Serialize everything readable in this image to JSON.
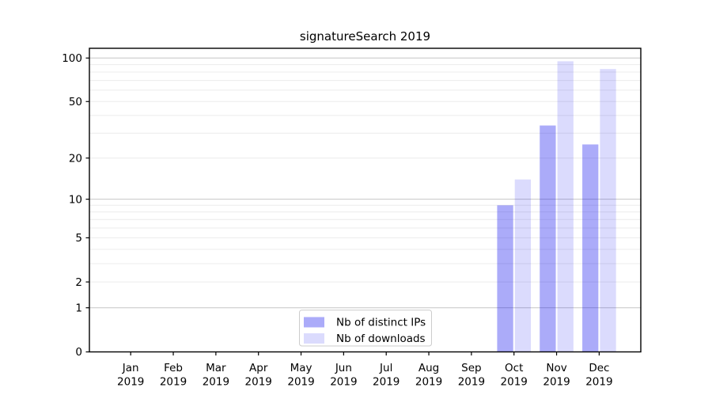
{
  "figure": {
    "background": "#ffffff",
    "axis_color": "#000000",
    "grid_minor_color": "#ececec",
    "grid_major_color": "#c6c6c6",
    "legend_border_color": "#cccccc"
  },
  "chart_data": {
    "type": "bar",
    "title": "signatureSearch 2019",
    "categories": [
      "Jan",
      "Feb",
      "Mar",
      "Apr",
      "May",
      "Jun",
      "Jul",
      "Aug",
      "Sep",
      "Oct",
      "Nov",
      "Dec"
    ],
    "x_sublabel": "2019",
    "series": [
      {
        "name": "Nb of distinct IPs",
        "color": "rgba(0,0,238,0.33)",
        "values": [
          0,
          0,
          0,
          0,
          0,
          0,
          0,
          0,
          0,
          9,
          34,
          25
        ]
      },
      {
        "name": "Nb of downloads",
        "color": "rgba(0,0,238,0.14)",
        "values": [
          0,
          0,
          0,
          0,
          0,
          0,
          0,
          0,
          0,
          14,
          95,
          84
        ]
      }
    ],
    "y_scale": "log1p",
    "y_ticks": [
      100,
      50,
      20,
      10,
      5,
      2,
      1,
      0
    ],
    "gridlines_minor": [
      2,
      3,
      4,
      5,
      6,
      7,
      8,
      9,
      20,
      30,
      40,
      50,
      60,
      70,
      80,
      90
    ],
    "gridlines_major": [
      1,
      10,
      100
    ],
    "ylim": [
      0,
      117
    ],
    "grid": true,
    "legend_position": "lower center"
  }
}
